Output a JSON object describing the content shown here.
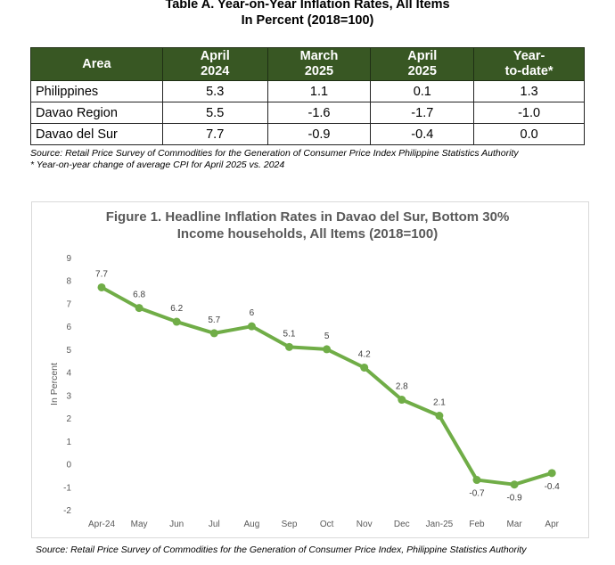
{
  "table": {
    "title_line1": "Table A. Year-on-Year Inflation Rates, All Items",
    "title_line2": "In Percent (2018=100)",
    "headers": [
      {
        "l1": "Area",
        "l2": ""
      },
      {
        "l1": "April",
        "l2": "2024"
      },
      {
        "l1": "March",
        "l2": "2025"
      },
      {
        "l1": "April",
        "l2": "2025"
      },
      {
        "l1": "Year-",
        "l2": "to-date*"
      }
    ],
    "rows": [
      {
        "area": "Philippines",
        "v": [
          "5.3",
          "1.1",
          "0.1",
          "1.3"
        ]
      },
      {
        "area": "Davao Region",
        "v": [
          "5.5",
          "-1.6",
          "-1.7",
          "-1.0"
        ]
      },
      {
        "area": "Davao del Sur",
        "v": [
          "7.7",
          "-0.9",
          "-0.4",
          "0.0"
        ]
      }
    ],
    "source": "Source: Retail Price Survey of Commodities for the Generation of Consumer Price Index Philippine Statistics Authority",
    "note": "* Year-on-year change of average CPI for April 2025 vs. 2024",
    "header_color": "#385723"
  },
  "chart_data": {
    "type": "line",
    "title_line1": "Figure 1. Headline Inflation Rates in Davao del Sur, Bottom 30%",
    "title_line2": "Income households, All Items (2018=100)",
    "xlabel": "",
    "ylabel": "In Percent",
    "categories": [
      "Apr-24",
      "May",
      "Jun",
      "Jul",
      "Aug",
      "Sep",
      "Oct",
      "Nov",
      "Dec",
      "Jan-25",
      "Feb",
      "Mar",
      "Apr"
    ],
    "values": [
      7.7,
      6.8,
      6.2,
      5.7,
      6,
      5.1,
      5,
      4.2,
      2.8,
      2.1,
      -0.7,
      -0.9,
      -0.4
    ],
    "data_labels": [
      "7.7",
      "6.8",
      "6.2",
      "5.7",
      "6",
      "5.1",
      "5",
      "4.2",
      "2.8",
      "2.1",
      "-0.7",
      "-0.9",
      "-0.4"
    ],
    "yticks": [
      9,
      8,
      7,
      6,
      5,
      4,
      3,
      2,
      1,
      0,
      -1,
      -2
    ],
    "ylim": [
      -2,
      9
    ],
    "line_color": "#70ad47",
    "grid": false,
    "legend": "none",
    "source": "Source: Retail Price Survey of Commodities for the Generation of Consumer Price Index, Philippine Statistics Authority"
  }
}
